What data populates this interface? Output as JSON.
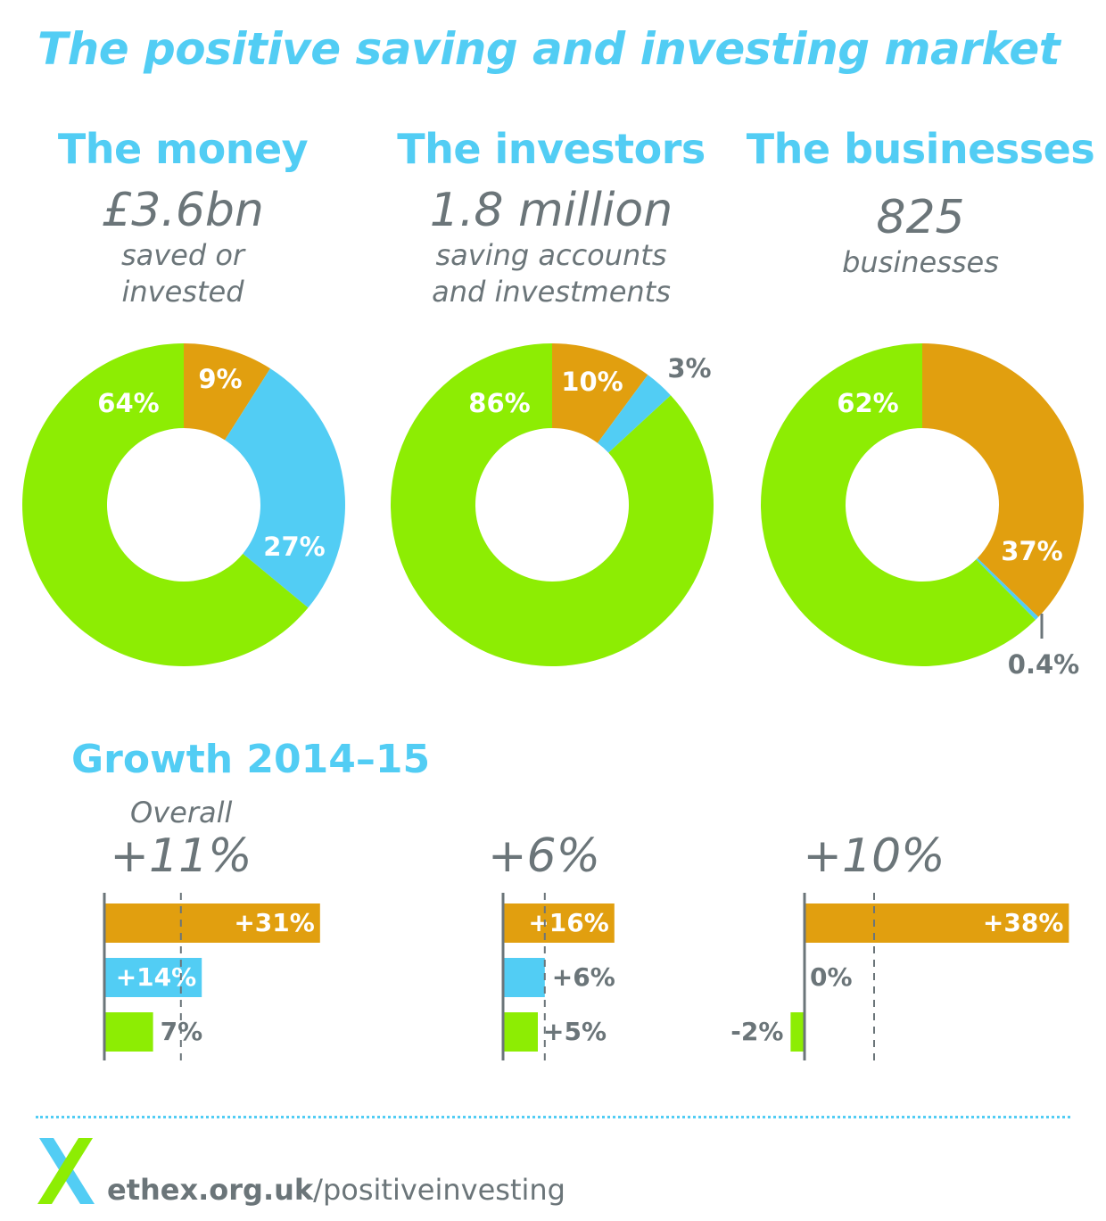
{
  "title": "The positive saving and investing market",
  "colors": {
    "orange": "#e19f0f",
    "blue": "#52cdf4",
    "green": "#8ded03",
    "grey": "#6b7579",
    "heading": "#52cdf4"
  },
  "columns": [
    {
      "heading": "The money",
      "value": "£3.6bn",
      "desc_lines": [
        "saved or",
        "invested"
      ]
    },
    {
      "heading": "The investors",
      "value": "1.8 million",
      "desc_lines": [
        "saving accounts",
        "and investments"
      ]
    },
    {
      "heading": "The businesses",
      "value": "825",
      "desc_lines": [
        "businesses"
      ]
    }
  ],
  "growth": {
    "title": "Growth 2014–15",
    "overall_label": "Overall",
    "totals": [
      "+11%",
      "+6%",
      "+10%"
    ]
  },
  "footer": {
    "domain": "ethex.org.uk",
    "path": "/positiveinvesting",
    "logo_icon": "ethex-x-logo-icon"
  },
  "chart_data": [
    {
      "type": "pie",
      "title": "The money",
      "slices": [
        {
          "value": 9,
          "label": "9%",
          "color": "orange"
        },
        {
          "value": 27,
          "label": "27%",
          "color": "blue"
        },
        {
          "value": 64,
          "label": "64%",
          "color": "green"
        }
      ]
    },
    {
      "type": "pie",
      "title": "The investors",
      "slices": [
        {
          "value": 10,
          "label": "10%",
          "color": "orange"
        },
        {
          "value": 3,
          "label": "3%",
          "color": "blue"
        },
        {
          "value": 86,
          "label": "86%",
          "color": "green"
        }
      ]
    },
    {
      "type": "pie",
      "title": "The businesses",
      "slices": [
        {
          "value": 37,
          "label": "37%",
          "color": "orange"
        },
        {
          "value": 0.4,
          "label": "0.4%",
          "color": "blue"
        },
        {
          "value": 62,
          "label": "62%",
          "color": "green"
        }
      ]
    },
    {
      "type": "bar",
      "title": "+11%",
      "overall": 11,
      "bars": [
        {
          "value": 31,
          "label": "+31%",
          "color": "orange"
        },
        {
          "value": 14,
          "label": "+14%",
          "color": "blue"
        },
        {
          "value": 7,
          "label": "7%",
          "color": "green"
        }
      ]
    },
    {
      "type": "bar",
      "title": "+6%",
      "overall": 6,
      "bars": [
        {
          "value": 16,
          "label": "+16%",
          "color": "orange"
        },
        {
          "value": 6,
          "label": "+6%",
          "color": "blue"
        },
        {
          "value": 5,
          "label": "+5%",
          "color": "green"
        }
      ]
    },
    {
      "type": "bar",
      "title": "+10%",
      "overall": 10,
      "bars": [
        {
          "value": 38,
          "label": "+38%",
          "color": "orange"
        },
        {
          "value": 0,
          "label": "0%",
          "color": "blue"
        },
        {
          "value": -2,
          "label": "-2%",
          "color": "green"
        }
      ]
    }
  ]
}
